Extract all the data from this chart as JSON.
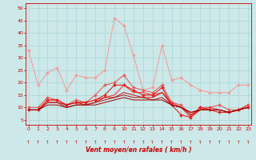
{
  "xlabel": "Vent moyen/en rafales ( km/h )",
  "background_color": "#cce8e8",
  "grid_color": "#b0d8d8",
  "x_ticks": [
    0,
    1,
    2,
    3,
    4,
    5,
    6,
    7,
    8,
    9,
    10,
    11,
    12,
    13,
    14,
    15,
    16,
    17,
    18,
    19,
    20,
    21,
    22,
    23
  ],
  "y_ticks": [
    5,
    10,
    15,
    20,
    25,
    30,
    35,
    40,
    45,
    50
  ],
  "ylim": [
    3,
    52
  ],
  "xlim": [
    -0.3,
    23.3
  ],
  "series": [
    {
      "x": [
        0,
        1,
        2,
        3,
        4,
        5,
        6,
        7,
        8,
        9,
        10,
        11,
        12,
        13,
        14,
        15,
        16,
        17,
        18,
        19,
        20,
        21,
        22,
        23
      ],
      "y": [
        33,
        19,
        24,
        26,
        17,
        23,
        22,
        22,
        25,
        46,
        43,
        31,
        17,
        18,
        35,
        21,
        22,
        19,
        17,
        16,
        16,
        16,
        19,
        19
      ],
      "color": "#f0a0a0",
      "linewidth": 0.8,
      "marker": "D",
      "markersize": 2.0
    },
    {
      "x": [
        0,
        1,
        2,
        3,
        4,
        5,
        6,
        7,
        8,
        9,
        10,
        11,
        12,
        13,
        14,
        15,
        16,
        17,
        18,
        19,
        20,
        21,
        22,
        23
      ],
      "y": [
        10,
        10,
        14,
        13,
        11,
        13,
        12,
        15,
        19,
        20,
        23,
        18,
        17,
        16,
        19,
        12,
        11,
        7,
        10,
        10,
        11,
        9,
        9,
        11
      ],
      "color": "#e06060",
      "linewidth": 0.8,
      "marker": "D",
      "markersize": 2.0
    },
    {
      "x": [
        0,
        1,
        2,
        3,
        4,
        5,
        6,
        7,
        8,
        9,
        10,
        11,
        12,
        13,
        14,
        15,
        16,
        17,
        18,
        19,
        20,
        21,
        22,
        23
      ],
      "y": [
        9,
        9,
        13,
        13,
        11,
        12,
        12,
        13,
        15,
        19,
        19,
        17,
        15,
        15,
        18,
        11,
        7,
        6,
        10,
        9,
        8,
        8,
        9,
        10
      ],
      "color": "#dd2222",
      "linewidth": 0.8,
      "marker": "D",
      "markersize": 2.0
    },
    {
      "x": [
        0,
        1,
        2,
        3,
        4,
        5,
        6,
        7,
        8,
        9,
        10,
        11,
        12,
        13,
        14,
        15,
        16,
        17,
        18,
        19,
        20,
        21,
        22,
        23
      ],
      "y": [
        9,
        9,
        13,
        13,
        11,
        12,
        12,
        13,
        14,
        15,
        19,
        16,
        16,
        15,
        16,
        12,
        10,
        6,
        9,
        10,
        9,
        8,
        9,
        11
      ],
      "color": "#ff2020",
      "linewidth": 0.7,
      "marker": null,
      "markersize": 0
    },
    {
      "x": [
        0,
        1,
        2,
        3,
        4,
        5,
        6,
        7,
        8,
        9,
        10,
        11,
        12,
        13,
        14,
        15,
        16,
        17,
        18,
        19,
        20,
        21,
        22,
        23
      ],
      "y": [
        9,
        9,
        12,
        12,
        11,
        12,
        11,
        12,
        14,
        14,
        16,
        15,
        14,
        14,
        16,
        11,
        10,
        7,
        9,
        9,
        9,
        8,
        9,
        10
      ],
      "color": "#cc1010",
      "linewidth": 0.7,
      "marker": null,
      "markersize": 0
    },
    {
      "x": [
        0,
        1,
        2,
        3,
        4,
        5,
        6,
        7,
        8,
        9,
        10,
        11,
        12,
        13,
        14,
        15,
        16,
        17,
        18,
        19,
        20,
        21,
        22,
        23
      ],
      "y": [
        9,
        9,
        12,
        12,
        10,
        11,
        11,
        12,
        13,
        14,
        15,
        14,
        14,
        13,
        14,
        11,
        10,
        8,
        9,
        9,
        9,
        8,
        9,
        10
      ],
      "color": "#bb1010",
      "linewidth": 0.7,
      "marker": null,
      "markersize": 0
    },
    {
      "x": [
        0,
        1,
        2,
        3,
        4,
        5,
        6,
        7,
        8,
        9,
        10,
        11,
        12,
        13,
        14,
        15,
        16,
        17,
        18,
        19,
        20,
        21,
        22,
        23
      ],
      "y": [
        9,
        9,
        11,
        11,
        10,
        11,
        11,
        11,
        12,
        13,
        14,
        13,
        13,
        13,
        13,
        11,
        10,
        8,
        9,
        9,
        9,
        8,
        9,
        10
      ],
      "color": "#990000",
      "linewidth": 0.7,
      "marker": null,
      "markersize": 0
    }
  ]
}
